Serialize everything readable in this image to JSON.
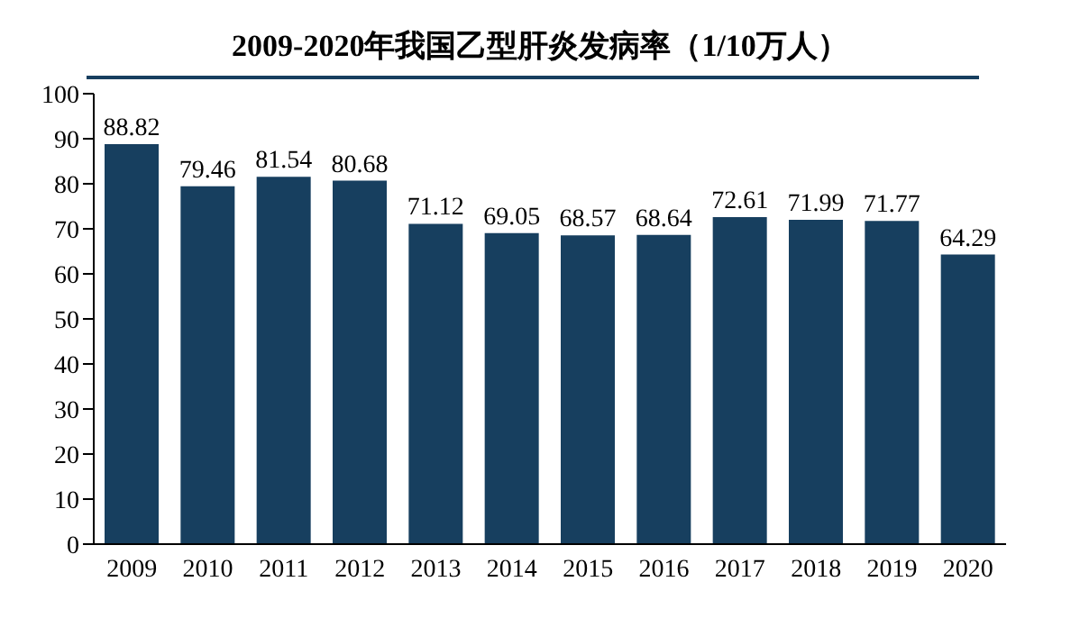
{
  "chart_data": {
    "type": "bar",
    "title": "2009-2020年我国乙型肝炎发病率（1/10万人）",
    "categories": [
      "2009",
      "2010",
      "2011",
      "2012",
      "2013",
      "2014",
      "2015",
      "2016",
      "2017",
      "2018",
      "2019",
      "2020"
    ],
    "values": [
      88.82,
      79.46,
      81.54,
      80.68,
      71.12,
      69.05,
      68.57,
      68.64,
      72.61,
      71.99,
      71.77,
      64.29
    ],
    "color": "#173f5f",
    "ylim": [
      0,
      100
    ],
    "yticks": [
      0,
      10,
      20,
      30,
      40,
      50,
      60,
      70,
      80,
      90,
      100
    ],
    "grid": false,
    "data_labels": true
  }
}
